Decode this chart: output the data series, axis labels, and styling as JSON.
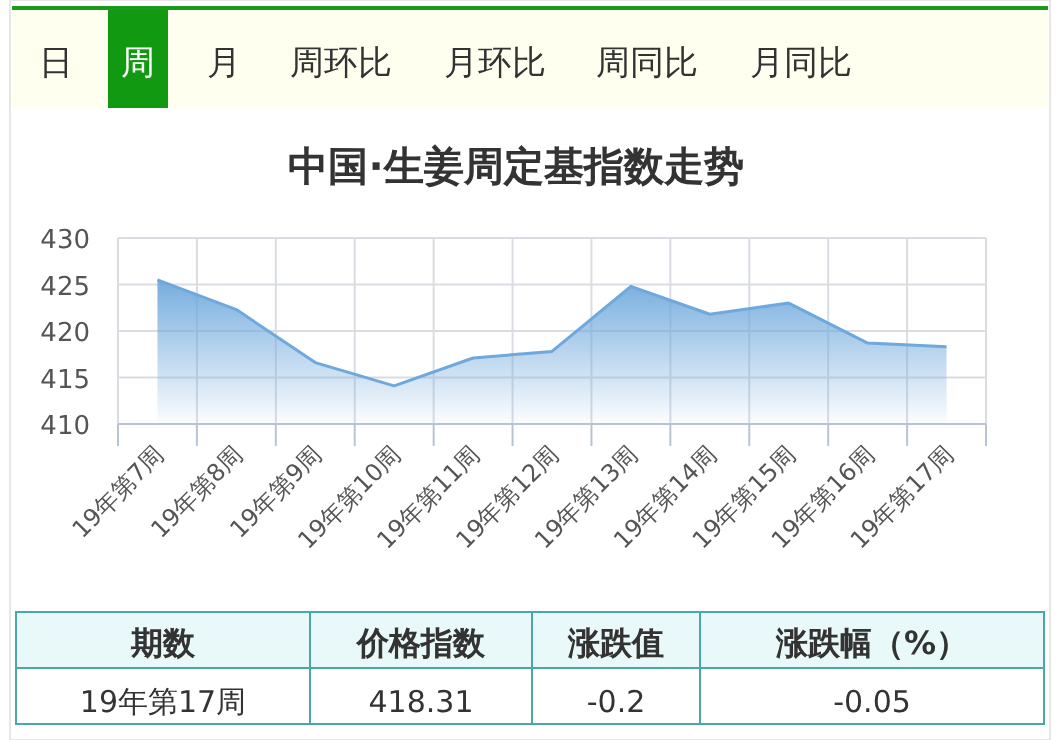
{
  "chart_data": {
    "type": "area",
    "title": "中国·生姜周定基指数走势",
    "categories": [
      "19年第7周",
      "19年第8周",
      "19年第9周",
      "19年第10周",
      "19年第11周",
      "19年第12周",
      "19年第13周",
      "19年第14周",
      "19年第15周",
      "19年第16周",
      "19年第17周"
    ],
    "series": [
      {
        "color": "#6fa8dc",
        "values": [
          425.5,
          422.3,
          416.6,
          414.1,
          417.1,
          417.8,
          424.8,
          421.8,
          423.0,
          418.7,
          418.3
        ]
      }
    ],
    "ylim": [
      410,
      430
    ],
    "yticks": [
      410,
      415,
      420,
      425,
      430
    ],
    "grid": true,
    "annotations": [
      "日",
      "周",
      "月",
      "周环比",
      "月环比",
      "周同比",
      "月同比",
      "期数",
      "价格指数",
      "涨跌值",
      "涨跌幅（%）",
      "19年第17周",
      "418.31",
      "-0.2",
      "-0.05"
    ]
  }
}
